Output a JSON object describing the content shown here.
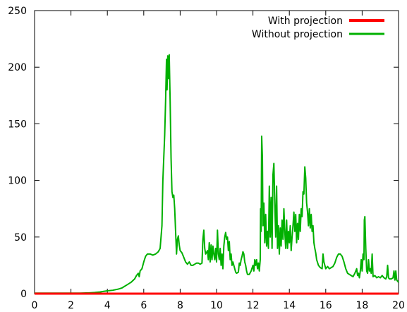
{
  "chart_data": {
    "type": "line",
    "title": "",
    "xlabel": "",
    "ylabel": "",
    "xlim": [
      0,
      20
    ],
    "ylim": [
      0,
      250
    ],
    "grid": false,
    "legend_position": "top-right",
    "x_ticks": [
      0,
      2,
      4,
      6,
      8,
      10,
      12,
      14,
      16,
      18,
      20
    ],
    "y_ticks": [
      0,
      50,
      100,
      150,
      200,
      250
    ],
    "series": [
      {
        "name": "With projection",
        "color": "#ff0000",
        "points": [
          [
            0,
            0
          ],
          [
            20,
            0
          ]
        ]
      },
      {
        "name": "Without projection",
        "color": "#00b000",
        "points": [
          [
            0,
            0.5
          ],
          [
            1,
            0.5
          ],
          [
            2,
            0.5
          ],
          [
            2.5,
            0.5
          ],
          [
            3,
            0.7
          ],
          [
            3.3,
            1
          ],
          [
            3.6,
            1.5
          ],
          [
            3.8,
            2
          ],
          [
            4.0,
            2.5
          ],
          [
            4.3,
            3
          ],
          [
            4.6,
            4
          ],
          [
            4.8,
            5
          ],
          [
            4.9,
            6
          ],
          [
            5.1,
            8
          ],
          [
            5.3,
            10
          ],
          [
            5.5,
            13
          ],
          [
            5.6,
            16
          ],
          [
            5.7,
            18
          ],
          [
            5.75,
            15
          ],
          [
            5.8,
            20
          ],
          [
            5.9,
            22
          ],
          [
            6.0,
            28
          ],
          [
            6.1,
            33
          ],
          [
            6.2,
            35
          ],
          [
            6.35,
            35
          ],
          [
            6.5,
            34
          ],
          [
            6.65,
            35
          ],
          [
            6.8,
            37
          ],
          [
            6.9,
            40
          ],
          [
            7.0,
            60
          ],
          [
            7.05,
            100
          ],
          [
            7.1,
            120
          ],
          [
            7.15,
            140
          ],
          [
            7.2,
            170
          ],
          [
            7.25,
            207
          ],
          [
            7.28,
            180
          ],
          [
            7.32,
            210
          ],
          [
            7.36,
            190
          ],
          [
            7.4,
            211
          ],
          [
            7.45,
            170
          ],
          [
            7.5,
            120
          ],
          [
            7.55,
            90
          ],
          [
            7.6,
            85
          ],
          [
            7.65,
            87
          ],
          [
            7.7,
            75
          ],
          [
            7.75,
            55
          ],
          [
            7.8,
            35
          ],
          [
            7.85,
            48
          ],
          [
            7.9,
            51
          ],
          [
            7.95,
            43
          ],
          [
            8.0,
            38
          ],
          [
            8.1,
            36
          ],
          [
            8.2,
            32
          ],
          [
            8.3,
            28
          ],
          [
            8.4,
            26
          ],
          [
            8.5,
            28
          ],
          [
            8.6,
            25
          ],
          [
            8.7,
            25
          ],
          [
            8.8,
            26
          ],
          [
            8.9,
            27
          ],
          [
            9.0,
            27
          ],
          [
            9.1,
            26
          ],
          [
            9.2,
            27
          ],
          [
            9.25,
            48
          ],
          [
            9.3,
            56
          ],
          [
            9.35,
            40
          ],
          [
            9.4,
            35
          ],
          [
            9.5,
            38
          ],
          [
            9.55,
            30
          ],
          [
            9.6,
            45
          ],
          [
            9.65,
            28
          ],
          [
            9.7,
            43
          ],
          [
            9.75,
            30
          ],
          [
            9.8,
            42
          ],
          [
            9.85,
            35
          ],
          [
            9.9,
            30
          ],
          [
            9.95,
            40
          ],
          [
            10.0,
            28
          ],
          [
            10.05,
            56
          ],
          [
            10.1,
            35
          ],
          [
            10.15,
            30
          ],
          [
            10.2,
            40
          ],
          [
            10.25,
            25
          ],
          [
            10.3,
            35
          ],
          [
            10.35,
            22
          ],
          [
            10.4,
            42
          ],
          [
            10.45,
            50
          ],
          [
            10.5,
            54
          ],
          [
            10.55,
            48
          ],
          [
            10.6,
            50
          ],
          [
            10.65,
            38
          ],
          [
            10.7,
            46
          ],
          [
            10.75,
            30
          ],
          [
            10.8,
            35
          ],
          [
            10.85,
            25
          ],
          [
            10.9,
            28
          ],
          [
            11.0,
            22
          ],
          [
            11.05,
            19
          ],
          [
            11.1,
            18
          ],
          [
            11.2,
            19
          ],
          [
            11.25,
            27
          ],
          [
            11.3,
            25
          ],
          [
            11.35,
            30
          ],
          [
            11.4,
            33
          ],
          [
            11.45,
            37
          ],
          [
            11.5,
            35
          ],
          [
            11.55,
            28
          ],
          [
            11.6,
            25
          ],
          [
            11.65,
            20
          ],
          [
            11.7,
            17
          ],
          [
            11.8,
            17
          ],
          [
            11.9,
            20
          ],
          [
            12.0,
            25
          ],
          [
            12.05,
            20
          ],
          [
            12.1,
            30
          ],
          [
            12.15,
            25
          ],
          [
            12.2,
            30
          ],
          [
            12.25,
            22
          ],
          [
            12.3,
            27
          ],
          [
            12.35,
            20
          ],
          [
            12.4,
            30
          ],
          [
            12.42,
            75
          ],
          [
            12.45,
            55
          ],
          [
            12.48,
            139
          ],
          [
            12.52,
            120
          ],
          [
            12.55,
            60
          ],
          [
            12.6,
            80
          ],
          [
            12.65,
            45
          ],
          [
            12.7,
            70
          ],
          [
            12.75,
            42
          ],
          [
            12.8,
            55
          ],
          [
            12.85,
            40
          ],
          [
            12.9,
            95
          ],
          [
            12.95,
            50
          ],
          [
            13.0,
            85
          ],
          [
            13.05,
            40
          ],
          [
            13.1,
            105
          ],
          [
            13.15,
            115
          ],
          [
            13.2,
            80
          ],
          [
            13.25,
            50
          ],
          [
            13.3,
            95
          ],
          [
            13.35,
            40
          ],
          [
            13.4,
            60
          ],
          [
            13.45,
            35
          ],
          [
            13.5,
            58
          ],
          [
            13.55,
            42
          ],
          [
            13.6,
            65
          ],
          [
            13.65,
            48
          ],
          [
            13.7,
            75
          ],
          [
            13.75,
            55
          ],
          [
            13.8,
            40
          ],
          [
            13.85,
            65
          ],
          [
            13.9,
            40
          ],
          [
            13.95,
            55
          ],
          [
            14.0,
            45
          ],
          [
            14.05,
            60
          ],
          [
            14.1,
            38
          ],
          [
            14.15,
            50
          ],
          [
            14.2,
            60
          ],
          [
            14.25,
            72
          ],
          [
            14.3,
            55
          ],
          [
            14.35,
            70
          ],
          [
            14.4,
            45
          ],
          [
            14.45,
            62
          ],
          [
            14.5,
            48
          ],
          [
            14.55,
            70
          ],
          [
            14.6,
            55
          ],
          [
            14.65,
            75
          ],
          [
            14.7,
            68
          ],
          [
            14.75,
            90
          ],
          [
            14.8,
            88
          ],
          [
            14.85,
            112
          ],
          [
            14.9,
            102
          ],
          [
            14.95,
            80
          ],
          [
            15.0,
            72
          ],
          [
            15.05,
            60
          ],
          [
            15.1,
            75
          ],
          [
            15.15,
            58
          ],
          [
            15.2,
            70
          ],
          [
            15.25,
            55
          ],
          [
            15.3,
            60
          ],
          [
            15.35,
            45
          ],
          [
            15.4,
            40
          ],
          [
            15.45,
            36
          ],
          [
            15.5,
            30
          ],
          [
            15.6,
            25
          ],
          [
            15.7,
            23
          ],
          [
            15.8,
            22
          ],
          [
            15.85,
            35
          ],
          [
            15.9,
            28
          ],
          [
            15.95,
            25
          ],
          [
            16.0,
            22
          ],
          [
            16.1,
            24
          ],
          [
            16.2,
            22
          ],
          [
            16.3,
            23
          ],
          [
            16.4,
            24
          ],
          [
            16.5,
            27
          ],
          [
            16.6,
            32
          ],
          [
            16.7,
            35
          ],
          [
            16.8,
            35
          ],
          [
            16.9,
            33
          ],
          [
            17.0,
            28
          ],
          [
            17.1,
            22
          ],
          [
            17.2,
            18
          ],
          [
            17.3,
            17
          ],
          [
            17.4,
            16
          ],
          [
            17.5,
            15
          ],
          [
            17.6,
            18
          ],
          [
            17.7,
            22
          ],
          [
            17.75,
            16
          ],
          [
            17.8,
            18
          ],
          [
            17.85,
            14
          ],
          [
            17.9,
            20
          ],
          [
            17.95,
            30
          ],
          [
            18.0,
            20
          ],
          [
            18.05,
            35
          ],
          [
            18.1,
            30
          ],
          [
            18.12,
            65
          ],
          [
            18.15,
            68
          ],
          [
            18.2,
            40
          ],
          [
            18.25,
            20
          ],
          [
            18.3,
            18
          ],
          [
            18.35,
            30
          ],
          [
            18.4,
            20
          ],
          [
            18.45,
            22
          ],
          [
            18.5,
            18
          ],
          [
            18.55,
            35
          ],
          [
            18.6,
            15
          ],
          [
            18.7,
            16
          ],
          [
            18.8,
            14
          ],
          [
            18.9,
            15
          ],
          [
            19.0,
            14
          ],
          [
            19.1,
            16
          ],
          [
            19.2,
            14
          ],
          [
            19.3,
            13
          ],
          [
            19.35,
            15
          ],
          [
            19.4,
            25
          ],
          [
            19.45,
            14
          ],
          [
            19.5,
            13
          ],
          [
            19.6,
            13
          ],
          [
            19.7,
            14
          ],
          [
            19.75,
            20
          ],
          [
            19.8,
            12
          ],
          [
            19.85,
            20
          ],
          [
            19.9,
            12
          ],
          [
            19.95,
            11
          ],
          [
            20.0,
            10
          ]
        ]
      }
    ]
  }
}
